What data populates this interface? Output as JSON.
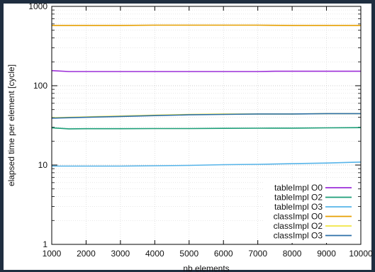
{
  "chart_data": {
    "type": "line",
    "title": "",
    "xlabel": "nb elements",
    "ylabel": "elapsed time per element [cycle]",
    "xlim": [
      1000,
      10000
    ],
    "ylim": [
      1,
      1000
    ],
    "yscale": "log",
    "grid": true,
    "legend_position": "bottom-right",
    "x_ticks": [
      {
        "value": 1000,
        "label": "1000"
      },
      {
        "value": 2000,
        "label": "2000"
      },
      {
        "value": 3000,
        "label": "3000"
      },
      {
        "value": 4000,
        "label": "4000"
      },
      {
        "value": 5000,
        "label": "5000"
      },
      {
        "value": 6000,
        "label": "6000"
      },
      {
        "value": 7000,
        "label": "7000"
      },
      {
        "value": 8000,
        "label": "8000"
      },
      {
        "value": 9000,
        "label": "9000"
      },
      {
        "value": 10000,
        "label": "10000"
      }
    ],
    "y_ticks": [
      {
        "value": 1,
        "label": "1"
      },
      {
        "value": 10,
        "label": "10"
      },
      {
        "value": 100,
        "label": "100"
      },
      {
        "value": 1000,
        "label": "1000"
      }
    ],
    "series": [
      {
        "name": "tableImpl O0",
        "color": "#9c2ed8",
        "x": [
          1000,
          1500,
          2000,
          3000,
          4000,
          5000,
          6000,
          7000,
          7500,
          8000,
          9000,
          10000
        ],
        "y": [
          155,
          151,
          151,
          151,
          151,
          151,
          151,
          151,
          152,
          152,
          152,
          152
        ]
      },
      {
        "name": "tableImpl O2",
        "color": "#1b9e77",
        "x": [
          1000,
          1500,
          2000,
          3000,
          4000,
          5000,
          6000,
          7000,
          8000,
          9000,
          10000
        ],
        "y": [
          29.5,
          28.6,
          28.7,
          28.7,
          28.8,
          28.8,
          29.0,
          29.1,
          29.2,
          29.4,
          29.6
        ]
      },
      {
        "name": "tableImpl O3",
        "color": "#56b4e9",
        "x": [
          1000,
          2000,
          3000,
          4000,
          5000,
          6000,
          7000,
          8000,
          9000,
          10000
        ],
        "y": [
          9.7,
          9.7,
          9.7,
          9.8,
          9.9,
          10.1,
          10.2,
          10.4,
          10.6,
          10.9
        ]
      },
      {
        "name": "classImpl O0",
        "color": "#e69f00",
        "x": [
          1000,
          2000,
          3000,
          4000,
          5000,
          6000,
          7000,
          8000,
          9000,
          10000
        ],
        "y": [
          575,
          575,
          575,
          580,
          580,
          580,
          580,
          575,
          575,
          575
        ]
      },
      {
        "name": "classImpl O2",
        "color": "#f0e442",
        "x": [
          1000,
          2000,
          3000,
          4000,
          5000,
          6000,
          7000,
          8000,
          9000,
          10000
        ],
        "y": [
          39.5,
          40.5,
          41.5,
          42.5,
          43.5,
          44,
          44,
          44,
          44.5,
          44.5
        ]
      },
      {
        "name": "classImpl O3",
        "color": "#2c6fa8",
        "x": [
          1000,
          2000,
          3000,
          4000,
          5000,
          6000,
          7000,
          8000,
          9000,
          10000
        ],
        "y": [
          39.0,
          40.0,
          41.0,
          42.0,
          43.0,
          43.5,
          44,
          44,
          44.5,
          44.5
        ]
      }
    ]
  }
}
